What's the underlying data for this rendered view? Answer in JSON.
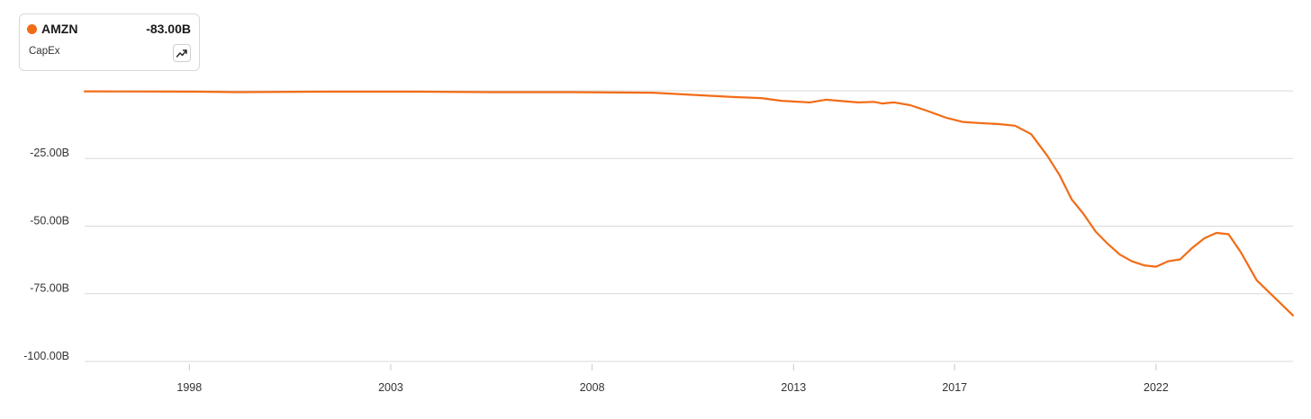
{
  "legend": {
    "ticker": "AMZN",
    "value": "-83.00B",
    "metric": "CapEx",
    "trend_icon": "trend-up-icon"
  },
  "colors": {
    "series": "#f26c17",
    "grid": "#d9d9d9",
    "text": "#333333"
  },
  "chart_data": {
    "type": "line",
    "title": "",
    "xlabel": "",
    "ylabel": "",
    "x_ticks": [
      "1998",
      "2003",
      "2008",
      "2013",
      "2017",
      "2022"
    ],
    "y_ticks": [
      "-25.00B",
      "-50.00B",
      "-75.00B",
      "-100.00B"
    ],
    "xlim": [
      1995.4,
      2025.4
    ],
    "ylim": [
      -101,
      0
    ],
    "grid": true,
    "legend_position": "top-left",
    "series": [
      {
        "name": "AMZN",
        "points": [
          [
            1995.4,
            -0.2
          ],
          [
            1998.0,
            -0.3
          ],
          [
            1999.2,
            -0.5
          ],
          [
            2001.5,
            -0.3
          ],
          [
            2003.5,
            -0.3
          ],
          [
            2005.5,
            -0.5
          ],
          [
            2007.5,
            -0.5
          ],
          [
            2009.5,
            -0.7
          ],
          [
            2010.5,
            -1.5
          ],
          [
            2011.5,
            -2.3
          ],
          [
            2012.2,
            -2.7
          ],
          [
            2012.7,
            -3.7
          ],
          [
            2013.4,
            -4.3
          ],
          [
            2013.8,
            -3.3
          ],
          [
            2014.2,
            -3.8
          ],
          [
            2014.6,
            -4.3
          ],
          [
            2015.0,
            -4.1
          ],
          [
            2015.2,
            -4.7
          ],
          [
            2015.5,
            -4.3
          ],
          [
            2015.9,
            -5.3
          ],
          [
            2016.3,
            -7.3
          ],
          [
            2016.8,
            -10.0
          ],
          [
            2017.2,
            -11.5
          ],
          [
            2017.6,
            -11.9
          ],
          [
            2018.1,
            -12.3
          ],
          [
            2018.5,
            -12.9
          ],
          [
            2018.9,
            -16.0
          ],
          [
            2019.3,
            -24.0
          ],
          [
            2019.6,
            -31.0
          ],
          [
            2019.9,
            -40.0
          ],
          [
            2020.2,
            -45.5
          ],
          [
            2020.5,
            -52.0
          ],
          [
            2020.8,
            -56.5
          ],
          [
            2021.1,
            -60.5
          ],
          [
            2021.4,
            -63.0
          ],
          [
            2021.7,
            -64.5
          ],
          [
            2022.0,
            -65.0
          ],
          [
            2022.3,
            -63.0
          ],
          [
            2022.6,
            -62.3
          ],
          [
            2022.9,
            -58.0
          ],
          [
            2023.2,
            -54.5
          ],
          [
            2023.5,
            -52.5
          ],
          [
            2023.8,
            -53.0
          ],
          [
            2024.1,
            -59.5
          ],
          [
            2024.5,
            -70.0
          ],
          [
            2025.4,
            -83.0
          ]
        ]
      }
    ]
  }
}
